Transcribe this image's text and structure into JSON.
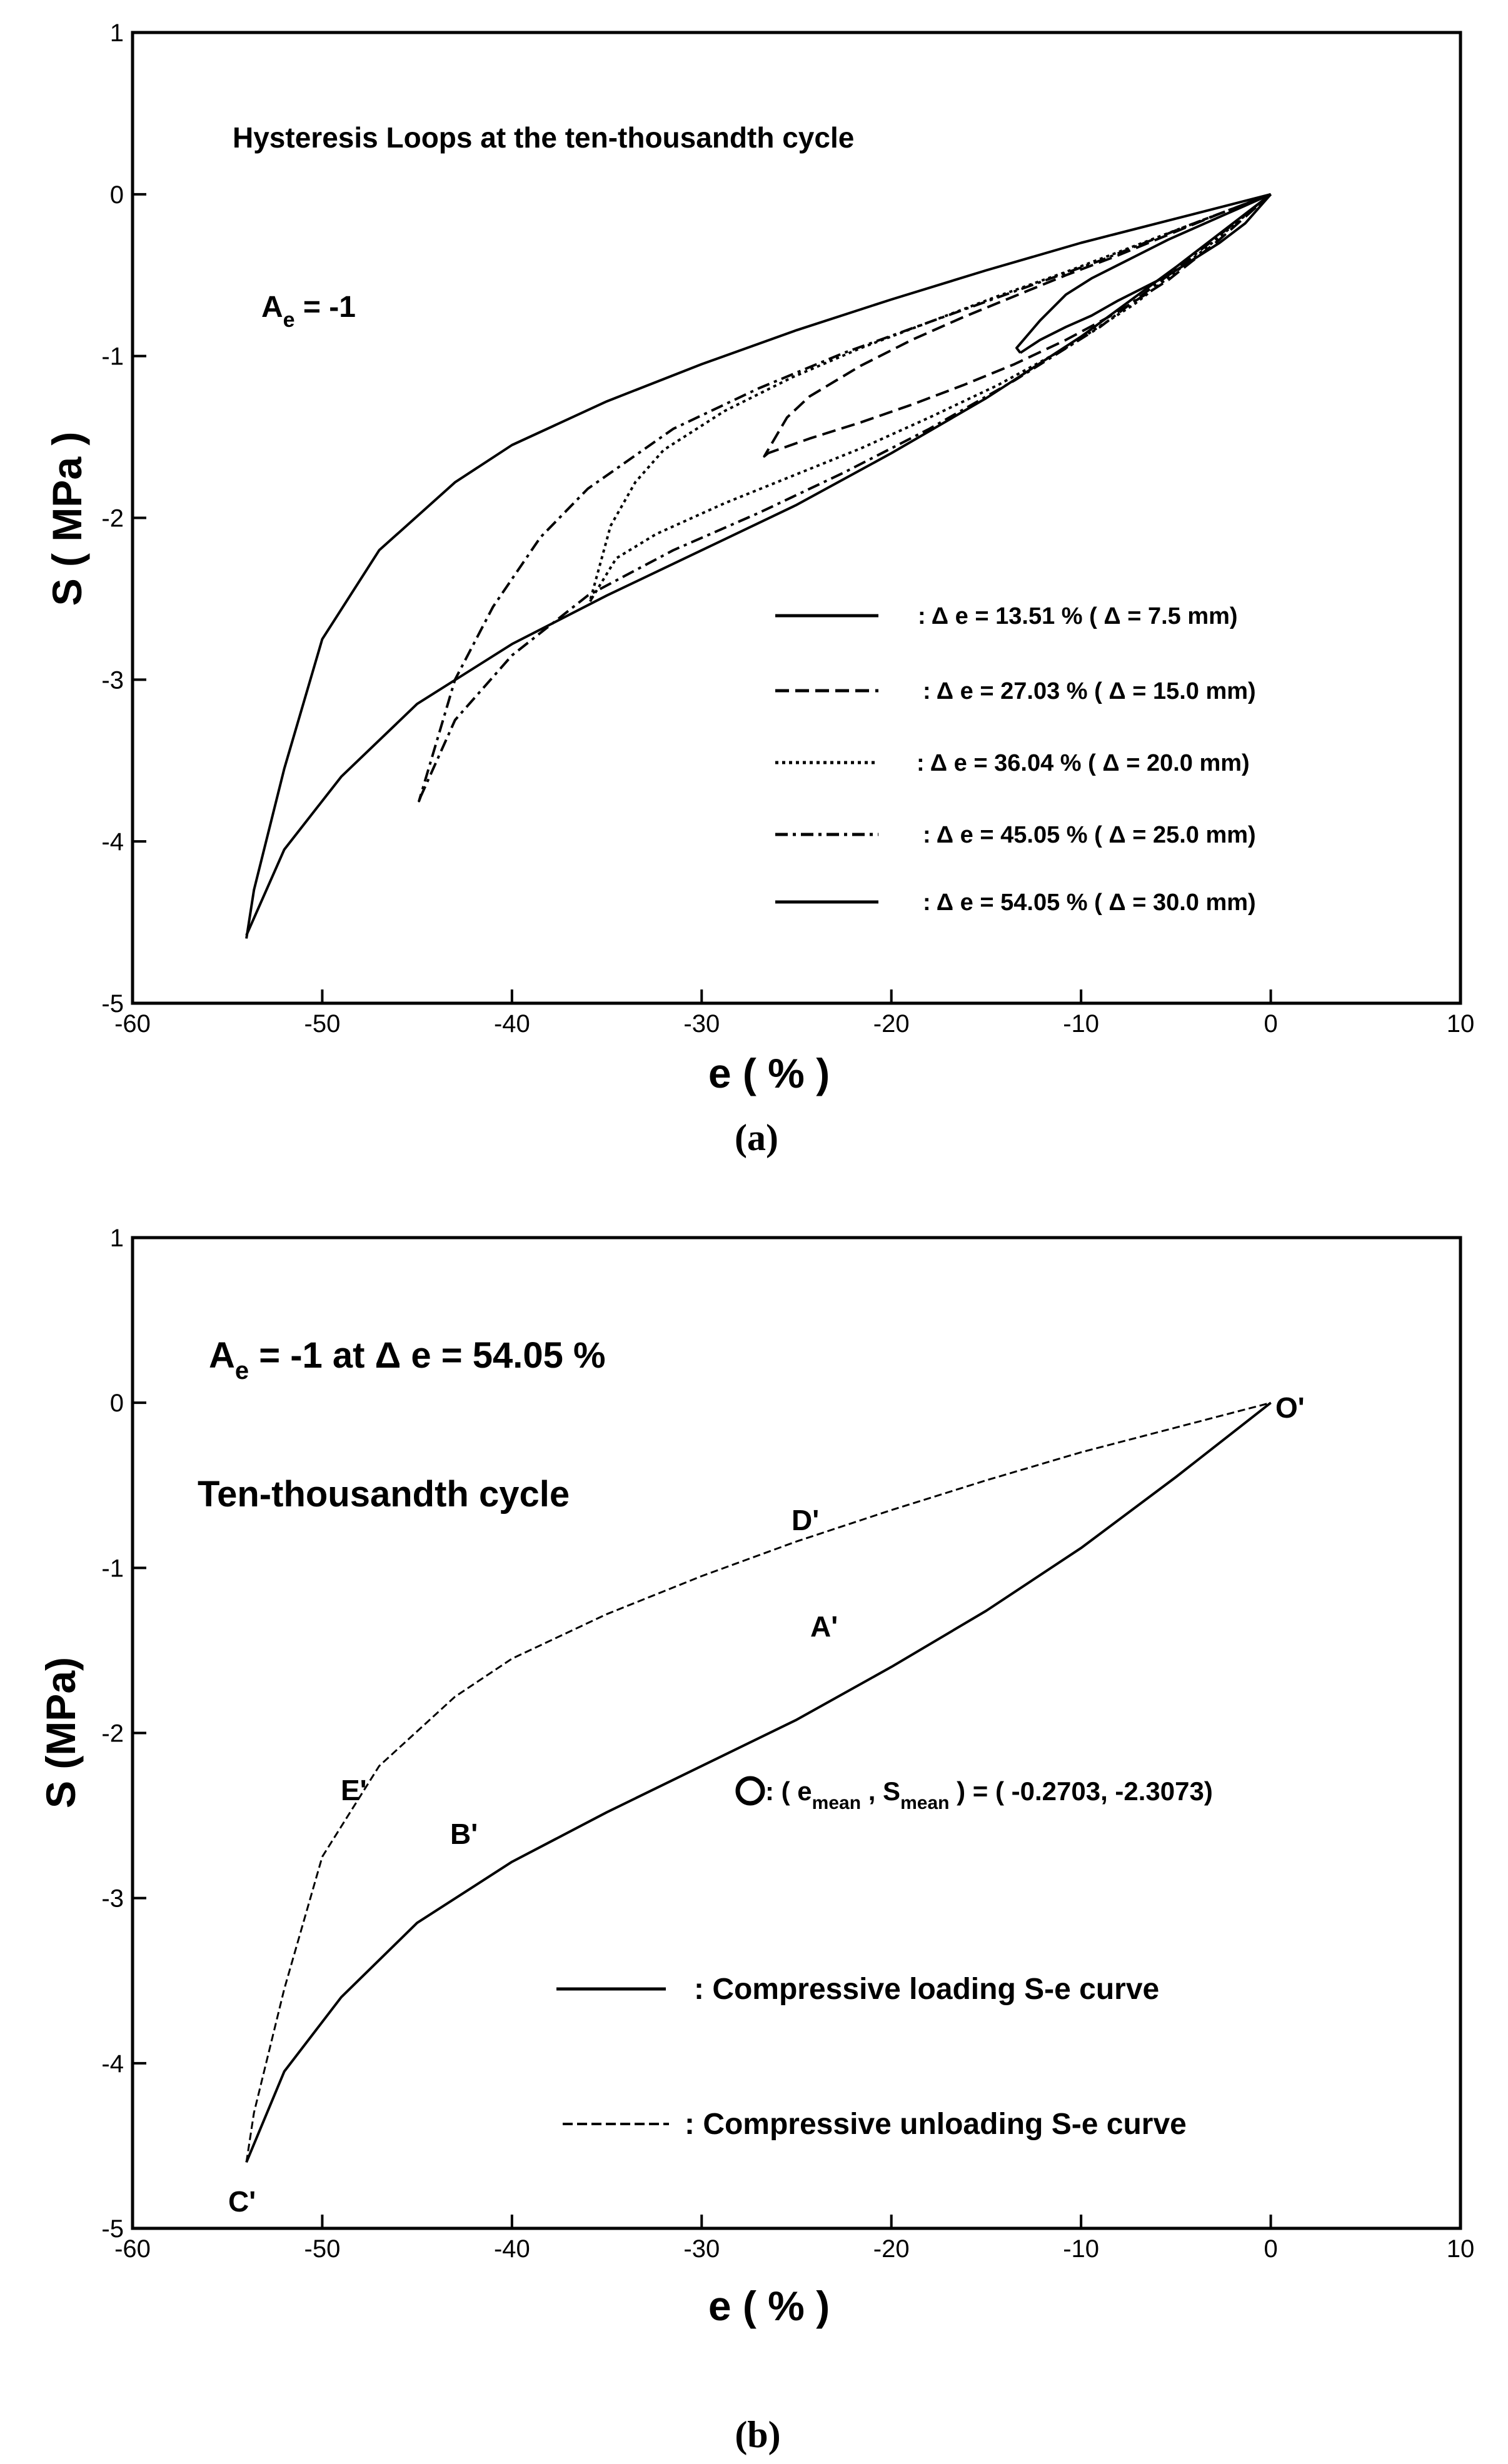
{
  "chart_data": [
    {
      "type": "line",
      "panel_label": "(a)",
      "title": "Hysteresis Loops at the ten-thousandth cycle",
      "annotation": {
        "A": "A",
        "sub": "e",
        "rest": " = -1"
      },
      "xlabel": "e ( % )",
      "ylabel": "S  ( MPa )",
      "xlim": [
        -60,
        10
      ],
      "ylim": [
        -5,
        1
      ],
      "xticks": [
        -60,
        -50,
        -40,
        -30,
        -20,
        -10,
        0,
        10
      ],
      "yticks": [
        1,
        0,
        -1,
        -2,
        -3,
        -4,
        -5
      ],
      "legend_position": "bottom-right",
      "series": [
        {
          "name": ": Δ e  =  13.51 % ( Δ = 7.5 mm)",
          "style": "solid",
          "loading": [
            [
              0,
              0
            ],
            [
              -1.35,
              -0.18
            ],
            [
              -2.7,
              -0.3
            ],
            [
              -4.05,
              -0.4
            ],
            [
              -5.4,
              -0.5
            ],
            [
              -6.75,
              -0.58
            ],
            [
              -8.1,
              -0.66
            ],
            [
              -9.45,
              -0.75
            ],
            [
              -10.8,
              -0.82
            ],
            [
              -12.16,
              -0.9
            ],
            [
              -13.2,
              -0.98
            ]
          ],
          "unloading": [
            [
              -13.2,
              -0.98
            ],
            [
              -13.4,
              -0.95
            ],
            [
              -12.16,
              -0.78
            ],
            [
              -10.8,
              -0.62
            ],
            [
              -9.45,
              -0.52
            ],
            [
              -8.1,
              -0.44
            ],
            [
              -6.75,
              -0.36
            ],
            [
              -5.4,
              -0.28
            ],
            [
              -4.05,
              -0.21
            ],
            [
              -2.7,
              -0.14
            ],
            [
              -1.35,
              -0.07
            ],
            [
              0,
              0
            ]
          ]
        },
        {
          "name": ": Δ e  =  27.03 % ( Δ = 15.0 mm)",
          "style": "dashed",
          "loading": [
            [
              0,
              0
            ],
            [
              -2.7,
              -0.28
            ],
            [
              -5.4,
              -0.53
            ],
            [
              -8.1,
              -0.73
            ],
            [
              -10.8,
              -0.9
            ],
            [
              -13.51,
              -1.05
            ],
            [
              -16.22,
              -1.18
            ],
            [
              -18.92,
              -1.3
            ],
            [
              -21.62,
              -1.41
            ],
            [
              -24.32,
              -1.51
            ],
            [
              -26.5,
              -1.6
            ]
          ],
          "unloading": [
            [
              -26.5,
              -1.6
            ],
            [
              -26.7,
              -1.62
            ],
            [
              -25.5,
              -1.38
            ],
            [
              -24.32,
              -1.25
            ],
            [
              -21.62,
              -1.06
            ],
            [
              -18.92,
              -0.9
            ],
            [
              -16.22,
              -0.76
            ],
            [
              -13.51,
              -0.63
            ],
            [
              -10.8,
              -0.5
            ],
            [
              -8.1,
              -0.38
            ],
            [
              -5.4,
              -0.25
            ],
            [
              -2.7,
              -0.12
            ],
            [
              0,
              0
            ]
          ]
        },
        {
          "name": ": Δ e  =  36.04 % ( Δ = 20.0 mm)",
          "style": "dotted",
          "loading": [
            [
              0,
              0
            ],
            [
              -3.6,
              -0.35
            ],
            [
              -7.2,
              -0.68
            ],
            [
              -10.8,
              -0.95
            ],
            [
              -14.4,
              -1.18
            ],
            [
              -18,
              -1.38
            ],
            [
              -21.6,
              -1.57
            ],
            [
              -25.2,
              -1.74
            ],
            [
              -28.8,
              -1.91
            ],
            [
              -32.4,
              -2.1
            ],
            [
              -34.5,
              -2.25
            ],
            [
              -35.8,
              -2.5
            ]
          ],
          "unloading": [
            [
              -35.8,
              -2.5
            ],
            [
              -35.9,
              -2.52
            ],
            [
              -34.8,
              -2.05
            ],
            [
              -33.5,
              -1.78
            ],
            [
              -32,
              -1.58
            ],
            [
              -28.8,
              -1.34
            ],
            [
              -25.2,
              -1.13
            ],
            [
              -21.6,
              -0.95
            ],
            [
              -18,
              -0.79
            ],
            [
              -14.4,
              -0.63
            ],
            [
              -10.8,
              -0.48
            ],
            [
              -7.2,
              -0.32
            ],
            [
              -3.6,
              -0.16
            ],
            [
              0,
              0
            ]
          ]
        },
        {
          "name": ": Δ e  =  45.05 % ( Δ = 25.0 mm)",
          "style": "dashdot",
          "loading": [
            [
              0,
              0
            ],
            [
              -4.5,
              -0.42
            ],
            [
              -9,
              -0.82
            ],
            [
              -13.5,
              -1.15
            ],
            [
              -18,
              -1.45
            ],
            [
              -22.5,
              -1.72
            ],
            [
              -27,
              -1.97
            ],
            [
              -31.5,
              -2.2
            ],
            [
              -36,
              -2.48
            ],
            [
              -40,
              -2.85
            ],
            [
              -43,
              -3.25
            ],
            [
              -44.8,
              -3.72
            ]
          ],
          "unloading": [
            [
              -44.8,
              -3.72
            ],
            [
              -44.9,
              -3.75
            ],
            [
              -43,
              -3.0
            ],
            [
              -41,
              -2.55
            ],
            [
              -38.5,
              -2.12
            ],
            [
              -36,
              -1.82
            ],
            [
              -31.5,
              -1.45
            ],
            [
              -27,
              -1.2
            ],
            [
              -22.5,
              -0.98
            ],
            [
              -18,
              -0.79
            ],
            [
              -13.5,
              -0.6
            ],
            [
              -9,
              -0.41
            ],
            [
              -4.5,
              -0.2
            ],
            [
              0,
              0
            ]
          ]
        },
        {
          "name": ": Δ e  =  54.05 % ( Δ = 30.0 mm)",
          "style": "solid",
          "loading": [
            [
              0,
              0
            ],
            [
              -5,
              -0.45
            ],
            [
              -10,
              -0.88
            ],
            [
              -15,
              -1.26
            ],
            [
              -20,
              -1.6
            ],
            [
              -25,
              -1.92
            ],
            [
              -30,
              -2.2
            ],
            [
              -35,
              -2.48
            ],
            [
              -40,
              -2.78
            ],
            [
              -45,
              -3.15
            ],
            [
              -49,
              -3.6
            ],
            [
              -52,
              -4.05
            ],
            [
              -54,
              -4.58
            ]
          ],
          "unloading": [
            [
              -54,
              -4.6
            ],
            [
              -53.6,
              -4.3
            ],
            [
              -52,
              -3.55
            ],
            [
              -50,
              -2.75
            ],
            [
              -47,
              -2.2
            ],
            [
              -43,
              -1.78
            ],
            [
              -40,
              -1.55
            ],
            [
              -35,
              -1.28
            ],
            [
              -30,
              -1.05
            ],
            [
              -25,
              -0.84
            ],
            [
              -20,
              -0.65
            ],
            [
              -15,
              -0.47
            ],
            [
              -10,
              -0.3
            ],
            [
              -5,
              -0.15
            ],
            [
              0,
              0
            ]
          ]
        }
      ]
    },
    {
      "type": "line",
      "panel_label": "(b)",
      "title": {
        "A": "A",
        "sub": "e",
        "rest": " = -1 at Δ e = 54.05 %"
      },
      "subtitle": "Ten-thousandth cycle",
      "xlabel": "e ( % )",
      "ylabel": "S (MPa)",
      "xlim": [
        -60,
        10
      ],
      "ylim": [
        -5,
        1
      ],
      "xticks": [
        -60,
        -50,
        -40,
        -30,
        -20,
        -10,
        0,
        10
      ],
      "yticks": [
        1,
        0,
        -1,
        -2,
        -3,
        -4,
        -5
      ],
      "legend_position": "bottom-right",
      "mean_point": {
        "label_start": ": ( e",
        "sub1": "mean",
        "mid": " , S",
        "sub2": "mean",
        "end": " ) = ( -0.2703, -2.3073)"
      },
      "point_labels": [
        "O'",
        "D'",
        "A'",
        "E'",
        "B'",
        "C'"
      ],
      "series": [
        {
          "name": ": Compressive loading S-e curve",
          "style": "solid",
          "points": [
            [
              0,
              0
            ],
            [
              -5,
              -0.45
            ],
            [
              -10,
              -0.88
            ],
            [
              -15,
              -1.26
            ],
            [
              -20,
              -1.6
            ],
            [
              -25,
              -1.92
            ],
            [
              -30,
              -2.2
            ],
            [
              -35,
              -2.48
            ],
            [
              -40,
              -2.78
            ],
            [
              -45,
              -3.15
            ],
            [
              -49,
              -3.6
            ],
            [
              -52,
              -4.05
            ],
            [
              -54,
              -4.6
            ]
          ]
        },
        {
          "name": ": Compressive unloading S-e curve",
          "style": "dashed",
          "points": [
            [
              -54,
              -4.6
            ],
            [
              -53.6,
              -4.3
            ],
            [
              -52,
              -3.55
            ],
            [
              -50,
              -2.75
            ],
            [
              -47,
              -2.2
            ],
            [
              -43,
              -1.78
            ],
            [
              -40,
              -1.55
            ],
            [
              -35,
              -1.28
            ],
            [
              -30,
              -1.05
            ],
            [
              -25,
              -0.84
            ],
            [
              -20,
              -0.65
            ],
            [
              -15,
              -0.47
            ],
            [
              -10,
              -0.3
            ],
            [
              -5,
              -0.15
            ],
            [
              0,
              0
            ]
          ]
        }
      ]
    }
  ]
}
